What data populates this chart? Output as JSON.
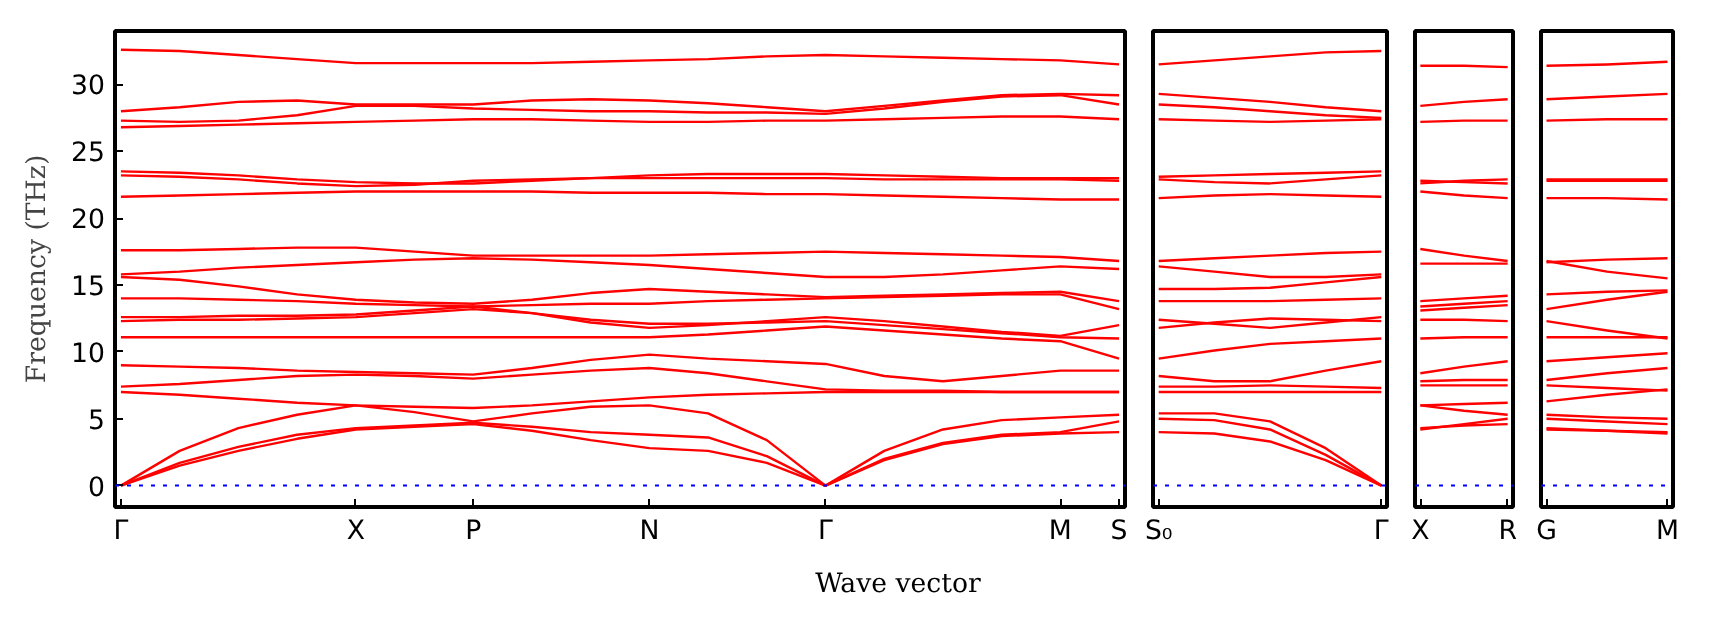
{
  "chart_data": [
    {
      "type": "line",
      "ylabel": "Frequency (THz)",
      "xlabel": "Wave vector",
      "color": "#ff0000",
      "line_style": "solid",
      "grid": false,
      "categories": [
        "Γ",
        null,
        null,
        null,
        "X",
        null,
        "P",
        null,
        null,
        "N",
        null,
        null,
        "Γ",
        null,
        null,
        null,
        "M",
        "S"
      ],
      "ylim": [
        -1.6,
        34
      ],
      "yticks": [
        0,
        5,
        10,
        15,
        20,
        25,
        30
      ],
      "ref_lines": [
        {
          "axis": "y",
          "value": 0,
          "color": "#0000ff",
          "line_style": "dotted"
        }
      ],
      "series": [
        {
          "values": [
            32.6,
            32.5,
            32.2,
            31.9,
            31.6,
            31.6,
            31.6,
            31.6,
            31.7,
            31.8,
            31.9,
            32.1,
            32.2,
            32.1,
            32.0,
            31.9,
            31.8,
            31.5
          ]
        },
        {
          "values": [
            28.0,
            28.3,
            28.7,
            28.8,
            28.5,
            28.5,
            28.5,
            28.8,
            28.9,
            28.8,
            28.6,
            28.3,
            28.0,
            28.4,
            28.8,
            29.2,
            29.3,
            29.2
          ]
        },
        {
          "values": [
            27.3,
            27.2,
            27.3,
            27.7,
            28.4,
            28.4,
            28.2,
            28.1,
            28.0,
            28.0,
            27.9,
            27.9,
            27.8,
            28.2,
            28.7,
            29.1,
            29.2,
            28.5
          ]
        },
        {
          "values": [
            26.8,
            26.9,
            27.0,
            27.1,
            27.2,
            27.3,
            27.4,
            27.4,
            27.3,
            27.2,
            27.2,
            27.3,
            27.3,
            27.4,
            27.5,
            27.6,
            27.6,
            27.4
          ]
        },
        {
          "values": [
            23.5,
            23.4,
            23.2,
            22.9,
            22.7,
            22.6,
            22.6,
            22.8,
            23.0,
            23.2,
            23.3,
            23.3,
            23.3,
            23.2,
            23.1,
            23.0,
            23.0,
            23.0
          ]
        },
        {
          "values": [
            23.2,
            23.1,
            22.9,
            22.6,
            22.4,
            22.5,
            22.8,
            22.9,
            23.0,
            23.0,
            23.0,
            23.0,
            23.0,
            22.9,
            22.9,
            22.9,
            22.9,
            22.8
          ]
        },
        {
          "values": [
            21.6,
            21.7,
            21.8,
            21.9,
            22.0,
            22.0,
            22.0,
            22.0,
            21.9,
            21.9,
            21.9,
            21.8,
            21.8,
            21.7,
            21.6,
            21.5,
            21.4,
            21.4
          ]
        },
        {
          "values": [
            17.6,
            17.6,
            17.7,
            17.8,
            17.8,
            17.5,
            17.2,
            17.2,
            17.2,
            17.2,
            17.3,
            17.4,
            17.5,
            17.4,
            17.3,
            17.2,
            17.1,
            16.8
          ]
        },
        {
          "values": [
            15.8,
            16.0,
            16.3,
            16.5,
            16.7,
            16.9,
            17.0,
            16.9,
            16.7,
            16.5,
            16.2,
            15.9,
            15.6,
            15.6,
            15.8,
            16.1,
            16.4,
            16.2
          ]
        },
        {
          "values": [
            15.6,
            15.4,
            14.9,
            14.3,
            13.9,
            13.7,
            13.6,
            13.9,
            14.4,
            14.7,
            14.5,
            14.3,
            14.1,
            14.2,
            14.3,
            14.4,
            14.5,
            13.8
          ]
        },
        {
          "values": [
            14.0,
            14.0,
            13.9,
            13.8,
            13.6,
            13.5,
            13.4,
            13.5,
            13.6,
            13.6,
            13.8,
            13.9,
            14.0,
            14.1,
            14.2,
            14.3,
            14.3,
            13.2
          ]
        },
        {
          "values": [
            12.6,
            12.6,
            12.7,
            12.7,
            12.8,
            13.1,
            13.4,
            12.9,
            12.2,
            11.8,
            12.0,
            12.3,
            12.6,
            12.3,
            11.9,
            11.5,
            11.2,
            12.0
          ]
        },
        {
          "values": [
            12.3,
            12.4,
            12.4,
            12.5,
            12.6,
            12.9,
            13.2,
            12.9,
            12.4,
            12.1,
            12.1,
            12.2,
            12.3,
            12.0,
            11.7,
            11.4,
            11.1,
            11.0
          ]
        },
        {
          "values": [
            11.1,
            11.1,
            11.1,
            11.1,
            11.1,
            11.1,
            11.1,
            11.1,
            11.1,
            11.1,
            11.3,
            11.6,
            11.9,
            11.6,
            11.3,
            11.0,
            10.8,
            9.5
          ]
        },
        {
          "values": [
            9.0,
            8.9,
            8.8,
            8.6,
            8.5,
            8.4,
            8.3,
            8.8,
            9.4,
            9.8,
            9.5,
            9.3,
            9.1,
            8.2,
            7.8,
            8.2,
            8.6,
            8.6
          ]
        },
        {
          "values": [
            7.4,
            7.6,
            7.9,
            8.2,
            8.3,
            8.2,
            8.0,
            8.3,
            8.6,
            8.8,
            8.4,
            7.8,
            7.2,
            7.1,
            7.1,
            7.0,
            7.0,
            7.0
          ]
        },
        {
          "values": [
            7.0,
            6.8,
            6.5,
            6.2,
            6.0,
            5.9,
            5.8,
            6.0,
            6.3,
            6.6,
            6.8,
            6.9,
            7.0,
            7.0,
            7.0,
            7.0,
            7.0,
            7.0
          ]
        },
        {
          "values": [
            0,
            2.6,
            4.3,
            5.3,
            6.0,
            5.5,
            4.8,
            5.4,
            5.9,
            6.0,
            5.4,
            3.4,
            0,
            2.6,
            4.2,
            4.9,
            5.1,
            5.3
          ]
        },
        {
          "values": [
            0,
            1.7,
            2.9,
            3.8,
            4.3,
            4.5,
            4.7,
            4.4,
            4.0,
            3.8,
            3.6,
            2.2,
            0,
            2.0,
            3.2,
            3.8,
            4.0,
            4.8
          ]
        },
        {
          "values": [
            0,
            1.5,
            2.6,
            3.5,
            4.2,
            4.4,
            4.6,
            4.1,
            3.4,
            2.8,
            2.6,
            1.7,
            0,
            1.9,
            3.1,
            3.7,
            3.9,
            4.0
          ]
        }
      ]
    },
    {
      "type": "line",
      "color": "#ff0000",
      "line_style": "solid",
      "grid": false,
      "tick_labels": "x",
      "categories": [
        "S₀",
        null,
        null,
        null,
        "Γ"
      ],
      "ylim": [
        -1.6,
        34
      ],
      "ref_lines": [
        {
          "axis": "y",
          "value": 0,
          "color": "#0000ff",
          "line_style": "dotted"
        }
      ],
      "series": [
        {
          "values": [
            31.5,
            31.8,
            32.1,
            32.4,
            32.5
          ]
        },
        {
          "values": [
            29.3,
            29.0,
            28.7,
            28.3,
            28.0
          ]
        },
        {
          "values": [
            28.5,
            28.3,
            28.0,
            27.7,
            27.5
          ]
        },
        {
          "values": [
            27.4,
            27.3,
            27.2,
            27.3,
            27.4
          ]
        },
        {
          "values": [
            23.1,
            23.2,
            23.3,
            23.4,
            23.5
          ]
        },
        {
          "values": [
            22.9,
            22.7,
            22.6,
            22.9,
            23.2
          ]
        },
        {
          "values": [
            21.5,
            21.7,
            21.8,
            21.7,
            21.6
          ]
        },
        {
          "values": [
            16.8,
            17.0,
            17.2,
            17.4,
            17.5
          ]
        },
        {
          "values": [
            16.4,
            16.0,
            15.6,
            15.6,
            15.8
          ]
        },
        {
          "values": [
            14.7,
            14.7,
            14.8,
            15.2,
            15.6
          ]
        },
        {
          "values": [
            13.8,
            13.8,
            13.8,
            13.9,
            14.0
          ]
        },
        {
          "values": [
            12.4,
            12.1,
            11.8,
            12.2,
            12.6
          ]
        },
        {
          "values": [
            11.8,
            12.2,
            12.5,
            12.4,
            12.3
          ]
        },
        {
          "values": [
            9.5,
            10.1,
            10.6,
            10.8,
            11.0
          ]
        },
        {
          "values": [
            8.2,
            7.8,
            7.8,
            8.6,
            9.3
          ]
        },
        {
          "values": [
            7.4,
            7.4,
            7.5,
            7.4,
            7.3
          ]
        },
        {
          "values": [
            7.0,
            7.0,
            7.0,
            7.0,
            7.0
          ]
        },
        {
          "values": [
            5.4,
            5.4,
            4.8,
            2.8,
            0
          ]
        },
        {
          "values": [
            5.0,
            4.9,
            4.2,
            2.3,
            0
          ]
        },
        {
          "values": [
            4.0,
            3.9,
            3.3,
            1.9,
            0
          ]
        }
      ]
    },
    {
      "type": "line",
      "color": "#ff0000",
      "line_style": "solid",
      "grid": false,
      "tick_labels": "x",
      "categories": [
        "X",
        null,
        "R"
      ],
      "ylim": [
        -1.6,
        34
      ],
      "ref_lines": [
        {
          "axis": "y",
          "value": 0,
          "color": "#0000ff",
          "line_style": "dotted"
        }
      ],
      "series": [
        {
          "values": [
            31.4,
            31.4,
            31.3
          ]
        },
        {
          "values": [
            28.4,
            28.7,
            28.9
          ]
        },
        {
          "values": [
            27.2,
            27.3,
            27.3
          ]
        },
        {
          "values": [
            22.8,
            22.7,
            22.6
          ]
        },
        {
          "values": [
            22.6,
            22.8,
            22.9
          ]
        },
        {
          "values": [
            22.0,
            21.7,
            21.5
          ]
        },
        {
          "values": [
            17.7,
            17.2,
            16.8
          ]
        },
        {
          "values": [
            16.6,
            16.6,
            16.6
          ]
        },
        {
          "values": [
            13.8,
            14.0,
            14.2
          ]
        },
        {
          "values": [
            13.4,
            13.6,
            13.8
          ]
        },
        {
          "values": [
            13.1,
            13.3,
            13.5
          ]
        },
        {
          "values": [
            12.4,
            12.4,
            12.3
          ]
        },
        {
          "values": [
            11.0,
            11.1,
            11.1
          ]
        },
        {
          "values": [
            8.4,
            8.9,
            9.3
          ]
        },
        {
          "values": [
            7.8,
            7.9,
            7.9
          ]
        },
        {
          "values": [
            7.5,
            7.5,
            7.5
          ]
        },
        {
          "values": [
            6.0,
            6.1,
            6.2
          ]
        },
        {
          "values": [
            6.0,
            5.6,
            5.3
          ]
        },
        {
          "values": [
            4.3,
            4.5,
            4.6
          ]
        },
        {
          "values": [
            4.2,
            4.6,
            5.0
          ]
        }
      ]
    },
    {
      "type": "line",
      "color": "#ff0000",
      "line_style": "solid",
      "grid": false,
      "tick_labels": "x",
      "categories": [
        "G",
        null,
        "M"
      ],
      "ylim": [
        -1.6,
        34
      ],
      "ref_lines": [
        {
          "axis": "y",
          "value": 0,
          "color": "#0000ff",
          "line_style": "dotted"
        }
      ],
      "series": [
        {
          "values": [
            31.4,
            31.5,
            31.7
          ]
        },
        {
          "values": [
            28.9,
            29.1,
            29.3
          ]
        },
        {
          "values": [
            27.3,
            27.4,
            27.4
          ]
        },
        {
          "values": [
            22.9,
            22.9,
            22.9
          ]
        },
        {
          "values": [
            22.8,
            22.8,
            22.8
          ]
        },
        {
          "values": [
            21.5,
            21.5,
            21.4
          ]
        },
        {
          "values": [
            16.8,
            16.0,
            15.5
          ]
        },
        {
          "values": [
            16.7,
            16.9,
            17.0
          ]
        },
        {
          "values": [
            14.3,
            14.5,
            14.6
          ]
        },
        {
          "values": [
            13.2,
            13.9,
            14.5
          ]
        },
        {
          "values": [
            12.3,
            11.6,
            11.0
          ]
        },
        {
          "values": [
            11.1,
            11.1,
            11.1
          ]
        },
        {
          "values": [
            9.3,
            9.6,
            9.9
          ]
        },
        {
          "values": [
            7.9,
            8.4,
            8.8
          ]
        },
        {
          "values": [
            7.5,
            7.3,
            7.1
          ]
        },
        {
          "values": [
            6.3,
            6.8,
            7.2
          ]
        },
        {
          "values": [
            5.3,
            5.1,
            5.0
          ]
        },
        {
          "values": [
            5.0,
            4.8,
            4.6
          ]
        },
        {
          "values": [
            4.3,
            4.1,
            3.9
          ]
        },
        {
          "values": [
            4.2,
            4.1,
            4.0
          ]
        }
      ]
    }
  ]
}
